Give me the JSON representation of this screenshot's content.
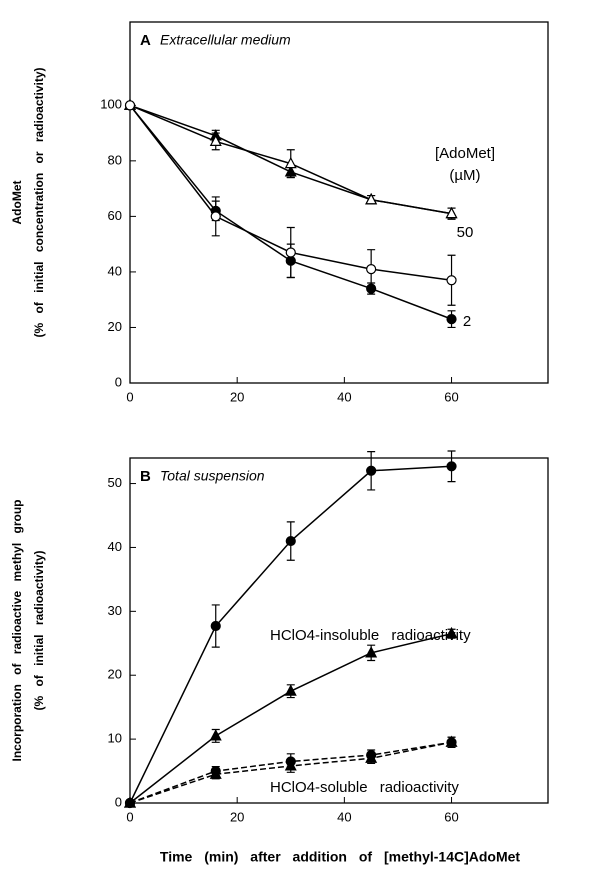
{
  "xlabel": "Time (min) after addition of [methyl-14C]AdoMet",
  "chart_data": [
    {
      "type": "line",
      "label": "A",
      "title": "Extracellular medium",
      "ylabel": [
        "AdoMet",
        "(% of initial concentration or radioactivity)"
      ],
      "x": [
        0,
        16,
        30,
        45,
        60
      ],
      "xlim": [
        0,
        78
      ],
      "xticks": [
        0,
        20,
        40,
        60
      ],
      "ylim": [
        0,
        130
      ],
      "yticks": [
        0,
        20,
        40,
        60,
        80,
        100
      ],
      "series": [
        {
          "marker": "triangle",
          "filled": true,
          "dashed": false,
          "color": "#000000",
          "values": [
            100,
            89,
            76,
            66,
            61
          ],
          "errors": [
            0,
            2,
            2,
            1.5,
            2
          ]
        },
        {
          "marker": "triangle",
          "filled": false,
          "dashed": false,
          "color": "#000000",
          "values": [
            100,
            87,
            79,
            66,
            61
          ],
          "errors": [
            0,
            3,
            5,
            1.5,
            2
          ]
        },
        {
          "marker": "circle",
          "filled": true,
          "dashed": false,
          "color": "#000000",
          "values": [
            100,
            62,
            44,
            34,
            23
          ],
          "errors": [
            0,
            3.5,
            6,
            2,
            3
          ]
        },
        {
          "marker": "circle",
          "filled": false,
          "dashed": false,
          "color": "#000000",
          "values": [
            100,
            60,
            47,
            41,
            37
          ],
          "errors": [
            0,
            7,
            9,
            7,
            9
          ]
        }
      ],
      "annotations": [
        "[AdoMet]",
        "(µM)",
        "50",
        "2"
      ]
    },
    {
      "type": "line",
      "label": "B",
      "title": "Total suspension",
      "ylabel": [
        "Incorporation of radioactive methyl group",
        "(% of initial radioactivity)"
      ],
      "x": [
        0,
        16,
        30,
        45,
        60
      ],
      "xlim": [
        0,
        78
      ],
      "xticks": [
        0,
        20,
        40,
        60
      ],
      "ylim": [
        0,
        54
      ],
      "yticks": [
        0,
        10,
        20,
        30,
        40,
        50
      ],
      "series": [
        {
          "marker": "circle",
          "filled": true,
          "dashed": false,
          "color": "#000000",
          "values": [
            0,
            27.7,
            41,
            52,
            52.7
          ],
          "errors": [
            0,
            3.3,
            3,
            3,
            2.4
          ]
        },
        {
          "marker": "triangle",
          "filled": true,
          "dashed": false,
          "color": "#000000",
          "values": [
            0,
            10.5,
            17.5,
            23.5,
            26.5
          ],
          "errors": [
            0,
            1,
            1,
            1.2,
            0.7
          ]
        },
        {
          "marker": "circle",
          "filled": true,
          "dashed": true,
          "color": "#000000",
          "values": [
            0,
            5,
            6.5,
            7.5,
            9.5
          ],
          "errors": [
            0,
            0.7,
            1.2,
            0.8,
            0.8
          ]
        },
        {
          "marker": "triangle",
          "filled": true,
          "dashed": true,
          "color": "#000000",
          "values": [
            0,
            4.5,
            5.8,
            7,
            9.5
          ],
          "errors": [
            0,
            0.7,
            1,
            0.8,
            0.8
          ]
        }
      ],
      "annotations": [
        "HClO4-insoluble radioactivity",
        "HClO4-soluble radioactivity"
      ]
    }
  ]
}
